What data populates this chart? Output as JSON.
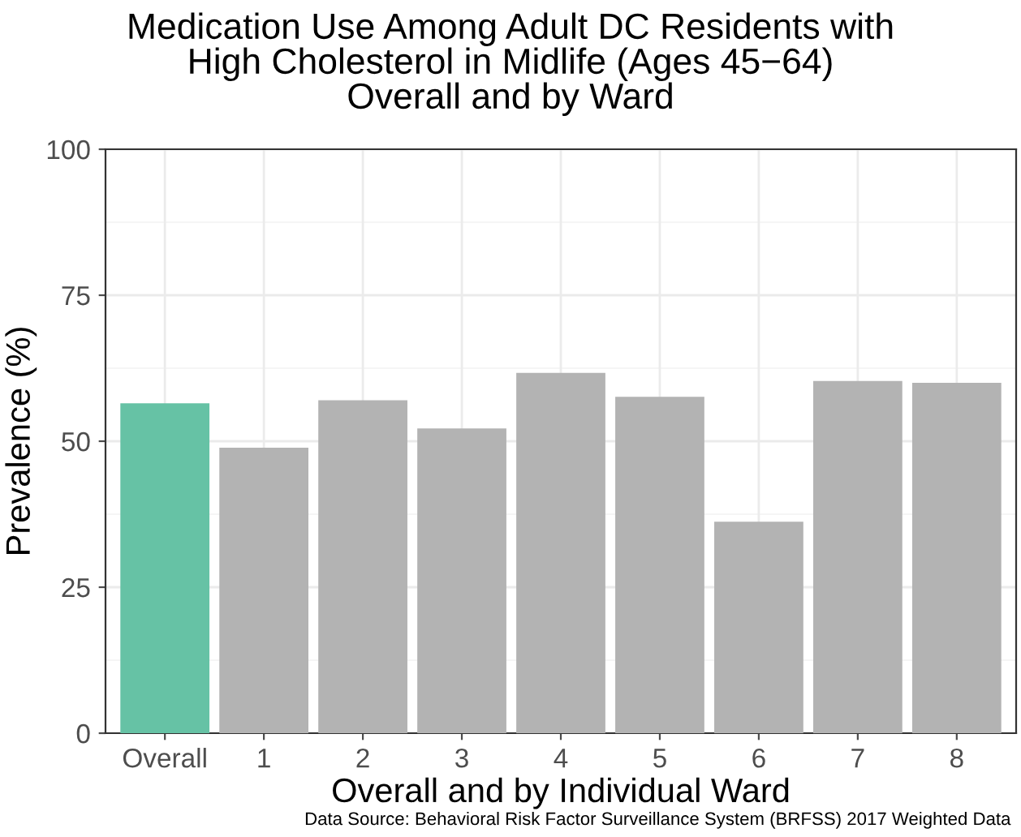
{
  "chart_data": {
    "type": "bar",
    "title": "Medication Use Among Adult DC Residents with\nHigh Cholesterol in Midlife (Ages 45−64)\nOverall and by Ward",
    "xlabel": "Overall and by Individual Ward",
    "ylabel": "Prevalence (%)",
    "categories": [
      "Overall",
      "1",
      "2",
      "3",
      "4",
      "5",
      "6",
      "7",
      "8"
    ],
    "values": [
      56.5,
      48.9,
      57.0,
      52.2,
      61.7,
      57.6,
      36.2,
      60.3,
      60.0
    ],
    "colors": [
      "#66c2a5",
      "#b3b3b3",
      "#b3b3b3",
      "#b3b3b3",
      "#b3b3b3",
      "#b3b3b3",
      "#b3b3b3",
      "#b3b3b3",
      "#b3b3b3"
    ],
    "ylim": [
      0,
      100
    ],
    "yticks": [
      0,
      25,
      50,
      75,
      100
    ],
    "grid": true,
    "annotations": [
      "Data Source: Behavioral Risk Factor Surveillance System (BRFSS) 2017 Weighted Data"
    ]
  }
}
